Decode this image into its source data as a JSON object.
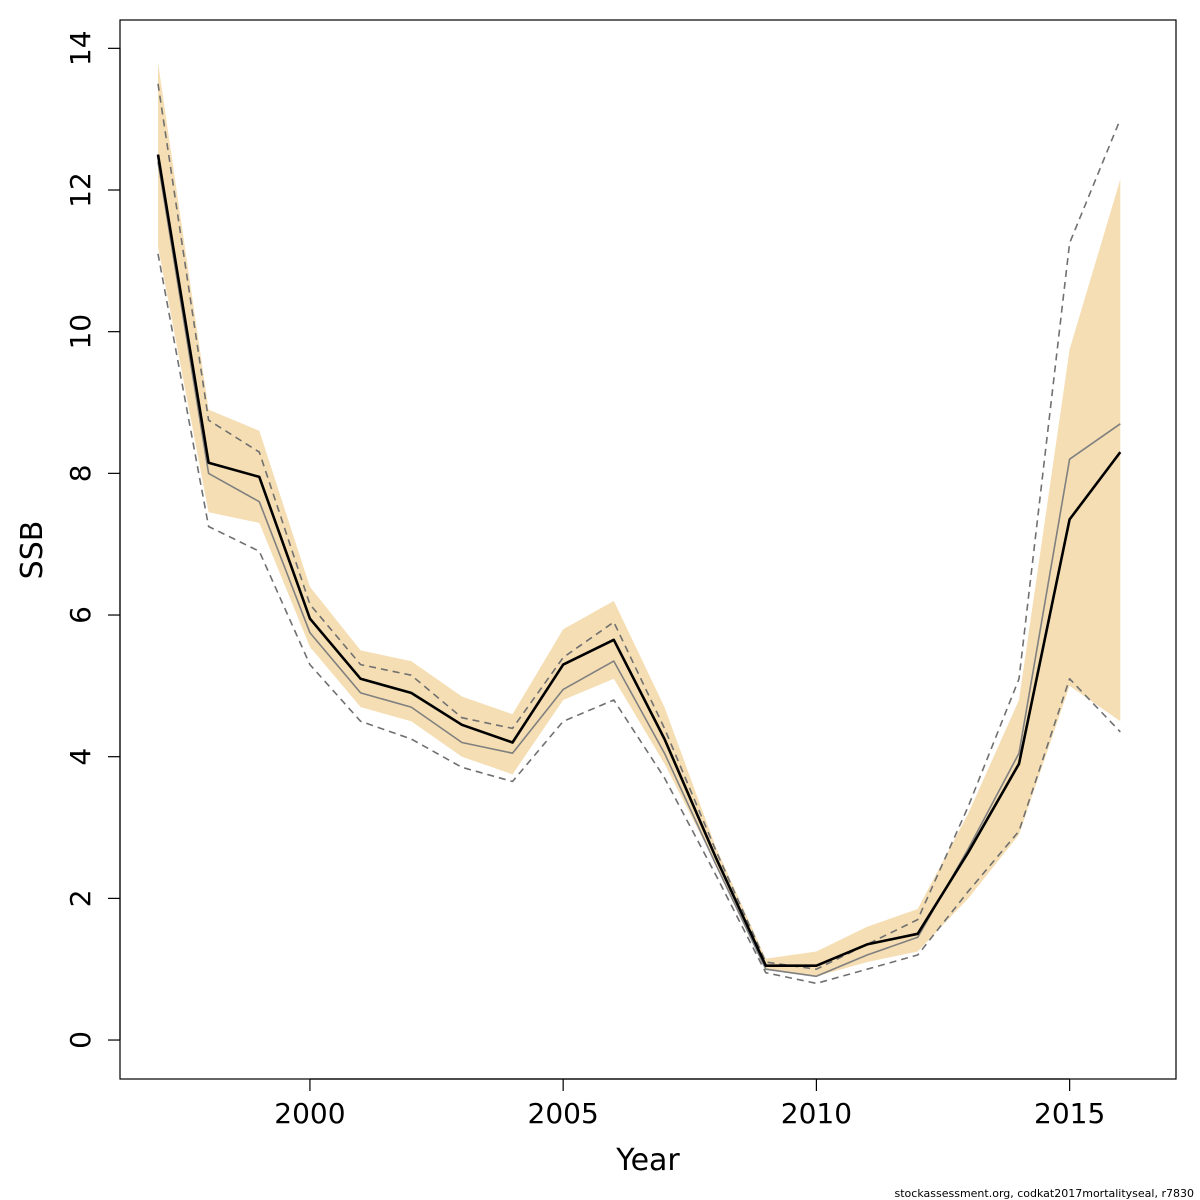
{
  "chart_data": {
    "type": "line",
    "title": "",
    "xlabel": "Year",
    "ylabel": "SSB",
    "xlim": [
      1996.25,
      2017.1
    ],
    "ylim": [
      -0.55,
      14.4
    ],
    "x_ticks": [
      2000,
      2005,
      2010,
      2015
    ],
    "y_ticks": [
      0,
      2,
      4,
      6,
      8,
      10,
      12,
      14
    ],
    "x_tick_labels": [
      "2000",
      "2005",
      "2010",
      "2015"
    ],
    "y_tick_labels": [
      "0",
      "2",
      "4",
      "6",
      "8",
      "10",
      "12",
      "14"
    ],
    "grid": false,
    "legend": "none",
    "x": [
      1997,
      1998,
      1999,
      2000,
      2001,
      2002,
      2003,
      2004,
      2005,
      2006,
      2007,
      2008,
      2009,
      2010,
      2011,
      2012,
      2013,
      2014,
      2015,
      2016
    ],
    "band": {
      "name": "confidence band",
      "lower": [
        11.2,
        7.45,
        7.3,
        5.55,
        4.7,
        4.5,
        4.0,
        3.75,
        4.8,
        5.1,
        3.9,
        2.5,
        1.0,
        0.9,
        1.1,
        1.25,
        2.0,
        2.9,
        5.0,
        4.5
      ],
      "upper": [
        13.8,
        8.9,
        8.6,
        6.4,
        5.5,
        5.35,
        4.85,
        4.6,
        5.8,
        6.2,
        4.7,
        2.75,
        1.15,
        1.25,
        1.6,
        1.85,
        3.2,
        4.8,
        9.75,
        12.15
      ]
    },
    "series": [
      {
        "role": "estimate",
        "values": [
          12.5,
          8.15,
          7.95,
          5.95,
          5.1,
          4.9,
          4.45,
          4.2,
          5.3,
          5.65,
          4.25,
          2.6,
          1.05,
          1.05,
          1.35,
          1.5,
          2.65,
          3.9,
          7.35,
          8.3
        ]
      },
      {
        "role": "comparison",
        "values": [
          12.4,
          8.0,
          7.6,
          5.75,
          4.9,
          4.7,
          4.2,
          4.05,
          4.95,
          5.35,
          4.05,
          2.5,
          1.0,
          0.9,
          1.2,
          1.45,
          2.7,
          4.05,
          8.2,
          8.7
        ]
      },
      {
        "role": "comparison-upper",
        "values": [
          13.5,
          8.75,
          8.3,
          6.15,
          5.3,
          5.15,
          4.55,
          4.4,
          5.4,
          5.9,
          4.4,
          2.7,
          1.1,
          1.0,
          1.35,
          1.7,
          3.3,
          5.1,
          11.25,
          13.0
        ]
      },
      {
        "role": "comparison-lower",
        "values": [
          11.1,
          7.25,
          6.9,
          5.3,
          4.5,
          4.25,
          3.85,
          3.65,
          4.5,
          4.8,
          3.7,
          2.35,
          0.95,
          0.8,
          1.0,
          1.2,
          2.1,
          2.95,
          5.1,
          4.35
        ]
      }
    ],
    "colors": {
      "band": "#f5deb3",
      "estimate": "#000000",
      "comparison": "#808080",
      "bounds": "#707070"
    },
    "footer": "stockassessment.org, codkat2017mortalityseal, r7830"
  }
}
